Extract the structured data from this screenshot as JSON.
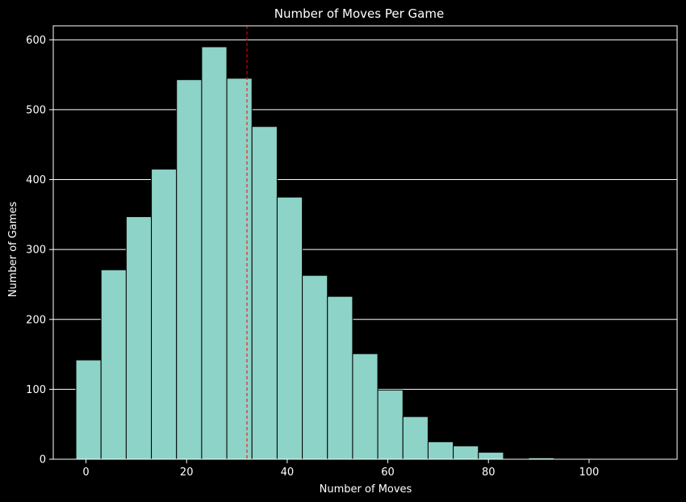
{
  "chart_data": {
    "type": "bar",
    "title": "Number of Moves Per Game",
    "xlabel": "Number of Moves",
    "ylabel": "Number of Games",
    "xlim": [
      -6.5,
      117.5
    ],
    "ylim": [
      0,
      620
    ],
    "xticks": [
      0,
      20,
      40,
      60,
      80,
      100
    ],
    "yticks": [
      0,
      100,
      200,
      300,
      400,
      500,
      600
    ],
    "grid": "y",
    "bar_color": "#8dd3c7",
    "edge_color": "#000000",
    "background": "#000000",
    "mean_line": {
      "x": 32,
      "color": "#ff0000",
      "style": "dashed"
    },
    "bins": [
      {
        "start": -2,
        "end": 3,
        "count": 142
      },
      {
        "start": 3,
        "end": 8,
        "count": 271
      },
      {
        "start": 8,
        "end": 13,
        "count": 347
      },
      {
        "start": 13,
        "end": 18,
        "count": 415
      },
      {
        "start": 18,
        "end": 23,
        "count": 543
      },
      {
        "start": 23,
        "end": 28,
        "count": 590
      },
      {
        "start": 28,
        "end": 33,
        "count": 545
      },
      {
        "start": 33,
        "end": 38,
        "count": 476
      },
      {
        "start": 38,
        "end": 43,
        "count": 375
      },
      {
        "start": 43,
        "end": 48,
        "count": 263
      },
      {
        "start": 48,
        "end": 53,
        "count": 233
      },
      {
        "start": 53,
        "end": 58,
        "count": 151
      },
      {
        "start": 58,
        "end": 63,
        "count": 99
      },
      {
        "start": 63,
        "end": 68,
        "count": 61
      },
      {
        "start": 68,
        "end": 73,
        "count": 25
      },
      {
        "start": 73,
        "end": 78,
        "count": 19
      },
      {
        "start": 78,
        "end": 83,
        "count": 10
      },
      {
        "start": 83,
        "end": 88,
        "count": 1
      },
      {
        "start": 88,
        "end": 93,
        "count": 2
      },
      {
        "start": 93,
        "end": 98,
        "count": 0
      },
      {
        "start": 98,
        "end": 103,
        "count": 0
      },
      {
        "start": 103,
        "end": 108,
        "count": 0
      },
      {
        "start": 108,
        "end": 113,
        "count": 1
      }
    ]
  }
}
